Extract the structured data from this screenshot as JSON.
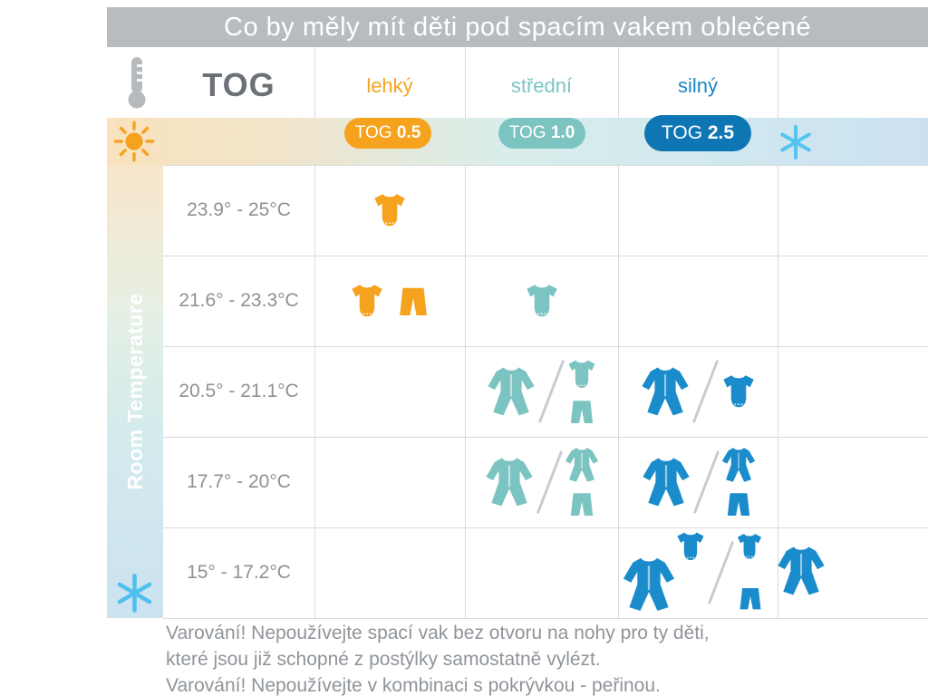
{
  "title": "Co by měly mít děti pod spacím vakem oblečené",
  "header": {
    "tog_label": "TOG",
    "columns": [
      {
        "key": "tog05",
        "label": "lehký",
        "label_color": "#f5a31f",
        "badge_label": "TOG",
        "badge_value": "0.5",
        "badge_bg": "#f5a31f",
        "garment_color": "#f5a31f"
      },
      {
        "key": "tog10",
        "label": "střední",
        "label_color": "#7cc4c2",
        "badge_label": "TOG",
        "badge_value": "1.0",
        "badge_bg": "#7cc4c2",
        "garment_color": "#7cc4c2"
      },
      {
        "key": "tog25",
        "label": "silný",
        "label_color": "#1b85c5",
        "badge_label": "TOG",
        "badge_value": "2.5",
        "badge_bg": "#0f76b4",
        "garment_color": "#1b8ccb"
      }
    ]
  },
  "side_label": "Room Temperature",
  "icons": {
    "thermometer": "thermometer-icon",
    "sun": "sun-icon",
    "snowflake_top_right": "snowflake-icon",
    "snowflake_bottom_left": "snowflake-icon",
    "bodysuit": "bodysuit-icon",
    "pants": "pants-icon",
    "sleepsuit": "sleepsuit-icon"
  },
  "rows": [
    {
      "temp": "23.9° - 25°C",
      "cells": [
        {
          "col": "tog05",
          "options": [
            {
              "layout": "row",
              "items": [
                "bodysuit"
              ]
            }
          ]
        }
      ]
    },
    {
      "temp": "21.6° - 23.3°C",
      "cells": [
        {
          "col": "tog05",
          "options": [
            {
              "layout": "row",
              "items": [
                "bodysuit",
                "pants"
              ]
            }
          ]
        },
        {
          "col": "tog10",
          "options": [
            {
              "layout": "row",
              "items": [
                "bodysuit"
              ]
            }
          ]
        }
      ]
    },
    {
      "temp": "20.5° - 21.1°C",
      "cells": [
        {
          "col": "tog10",
          "options": [
            {
              "layout": "row",
              "items": [
                "sleepsuit"
              ]
            },
            {
              "layout": "stack",
              "items": [
                "bodysuit",
                "pants"
              ]
            }
          ]
        },
        {
          "col": "tog25",
          "options": [
            {
              "layout": "row",
              "items": [
                "sleepsuit"
              ]
            },
            {
              "layout": "row",
              "items": [
                "bodysuit"
              ]
            }
          ]
        }
      ]
    },
    {
      "temp": "17.7° - 20°C",
      "cells": [
        {
          "col": "tog10",
          "options": [
            {
              "layout": "row",
              "items": [
                "sleepsuit"
              ]
            },
            {
              "layout": "stack",
              "items": [
                "sleepsuit",
                "pants"
              ]
            }
          ]
        },
        {
          "col": "tog25",
          "options": [
            {
              "layout": "row",
              "items": [
                "sleepsuit"
              ]
            },
            {
              "layout": "stack",
              "items": [
                "sleepsuit",
                "pants"
              ]
            }
          ]
        }
      ]
    },
    {
      "temp": "15° - 17.2°C",
      "cells": [
        {
          "col": "tog25",
          "options": [
            {
              "layout": "overlap",
              "items": [
                "sleepsuit",
                "bodysuit"
              ]
            },
            {
              "layout": "trio",
              "items": [
                "bodysuit",
                "pants",
                "sleepsuit"
              ]
            }
          ]
        }
      ]
    }
  ],
  "warnings": [
    "Varování! Nepoužívejte spací vak bez otvoru na nohy pro ty děti,",
    "které jsou již schopné z postýlky samostatně vylézt.",
    "Varování! Nepoužívejte v kombinaci s pokrývkou - peřinou."
  ],
  "colors": {
    "title_bar": "#b8bcc0",
    "tog_text": "#6c7177",
    "grid_line": "#d9dbdd",
    "temp_text": "#8d9297",
    "warning_text": "#8f9499",
    "warm_band": "#f9e2bd",
    "cool_band": "#cbe1f2",
    "sun": "#f5a31f",
    "snowflake": "#55c4ef"
  }
}
